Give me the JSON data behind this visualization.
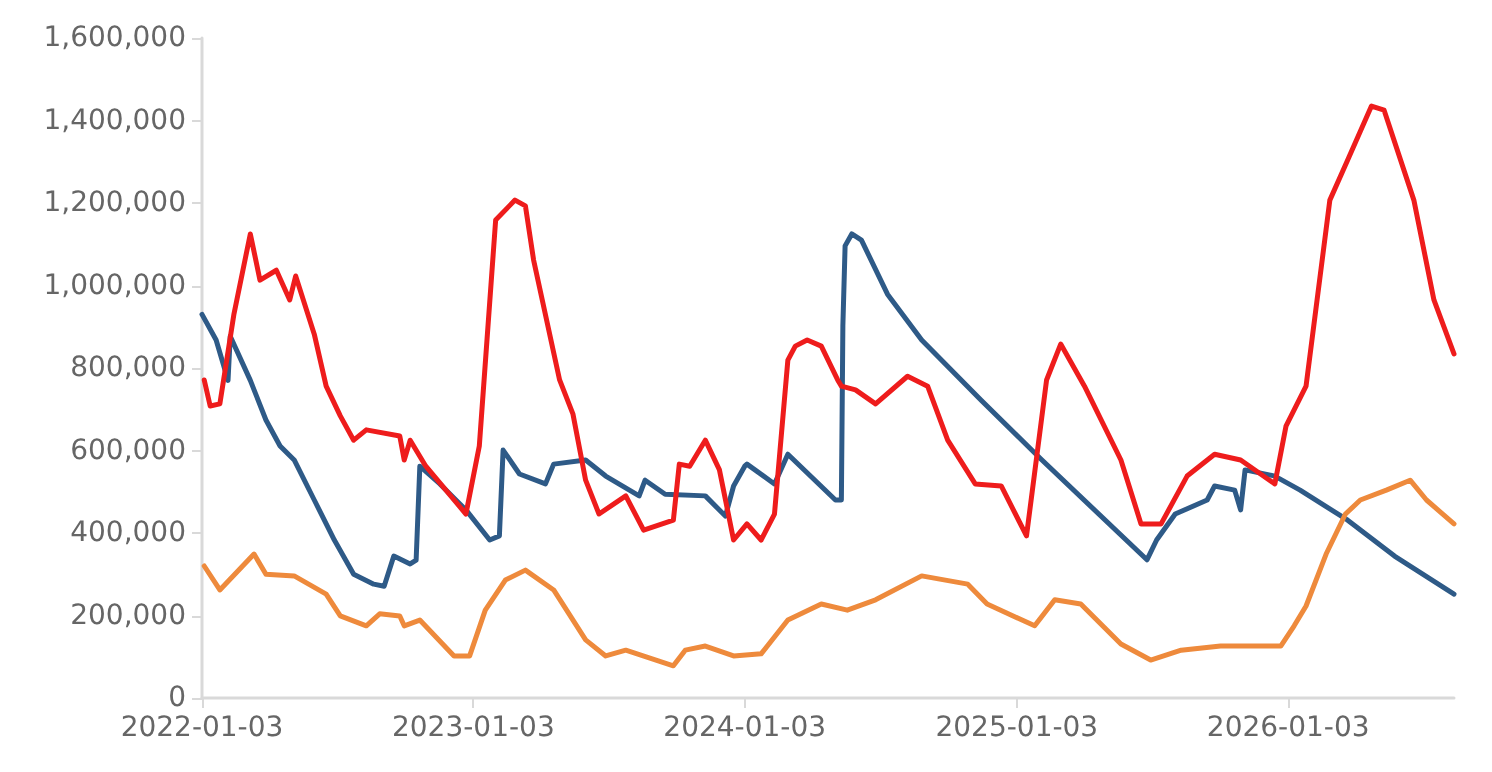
{
  "chart_data": {
    "type": "line",
    "xlim": [
      "2022-01-03",
      "2026-08-14"
    ],
    "xticks": [
      "2022-01-03",
      "2023-01-03",
      "2024-01-03",
      "2025-01-03",
      "2026-01-03"
    ],
    "ylim": [
      0,
      1600000
    ],
    "yticks": [
      0,
      {
        "value": 200000,
        "label": "200,000"
      },
      {
        "value": 400000,
        "label": "400,000"
      },
      {
        "value": 600000,
        "label": "600,000"
      },
      {
        "value": 800000,
        "label": "800,000"
      },
      {
        "value": 1000000,
        "label": "1,000,000"
      },
      {
        "value": 1200000,
        "label": "1,200,000"
      },
      {
        "value": 1400000,
        "label": "1,400,000"
      },
      {
        "value": 1600000,
        "label": "1,600,000"
      }
    ],
    "grid": false,
    "marker": "none",
    "line_style": "solid",
    "series": [
      {
        "color": "#2e5a87",
        "x": [
          "2022-01-03",
          "2022-01-22",
          "2022-02-07",
          "2022-02-10",
          "2022-03-09",
          "2022-03-30",
          "2022-04-18",
          "2022-05-07",
          "2022-06-03",
          "2022-06-30",
          "2022-07-26",
          "2022-08-22",
          "2022-09-05",
          "2022-09-18",
          "2022-10-10",
          "2022-10-18",
          "2022-10-23",
          "2022-11-19",
          "2022-12-24",
          "2023-01-25",
          "2023-02-07",
          "2023-02-12",
          "2023-03-06",
          "2023-04-10",
          "2023-04-21",
          "2023-06-03",
          "2023-06-30",
          "2023-08-14",
          "2023-08-22",
          "2023-09-18",
          "2023-11-11",
          "2023-12-08",
          "2023-12-19",
          "2024-01-03",
          "2024-01-06",
          "2024-02-12",
          "2024-03-01",
          "2024-05-04",
          "2024-05-12",
          "2024-05-14",
          "2024-05-17",
          "2024-05-26",
          "2024-06-08",
          "2024-07-13",
          "2024-08-28",
          "2024-11-16",
          "2025-02-04",
          "2025-06-27",
          "2025-07-10",
          "2025-08-04",
          "2025-09-16",
          "2025-09-26",
          "2025-10-23",
          "2025-10-31",
          "2025-11-06",
          "2025-12-16",
          "2026-01-19",
          "2026-03-24",
          "2026-05-26",
          "2026-08-14"
        ],
        "values": [
          930000,
          868000,
          770000,
          877000,
          770000,
          674000,
          611000,
          577000,
          480000,
          383000,
          300000,
          276000,
          271000,
          344000,
          325000,
          334000,
          562000,
          519000,
          456000,
          383000,
          393000,
          601000,
          543000,
          519000,
          567000,
          577000,
          538000,
          490000,
          528000,
          494000,
          490000,
          441000,
          514000,
          562000,
          567000,
          519000,
          591000,
          480000,
          480000,
          902000,
          1096000,
          1125000,
          1110000,
          979000,
          868000,
          722000,
          580000,
          335000,
          383000,
          446000,
          480000,
          514000,
          504000,
          456000,
          553000,
          538000,
          504000,
          431000,
          344000,
          252000
        ]
      },
      {
        "color": "#ee1c1c",
        "x": [
          "2022-01-06",
          "2022-01-14",
          "2022-01-27",
          "2022-02-15",
          "2022-03-09",
          "2022-03-22",
          "2022-04-13",
          "2022-05-01",
          "2022-05-09",
          "2022-06-03",
          "2022-06-19",
          "2022-07-08",
          "2022-07-26",
          "2022-08-12",
          "2022-09-26",
          "2022-10-02",
          "2022-10-10",
          "2022-10-31",
          "2022-12-24",
          "2023-01-11",
          "2023-02-02",
          "2023-02-28",
          "2023-03-14",
          "2023-03-25",
          "2023-04-29",
          "2023-05-17",
          "2023-06-03",
          "2023-06-21",
          "2023-07-27",
          "2023-08-20",
          "2023-09-29",
          "2023-10-07",
          "2023-10-21",
          "2023-11-11",
          "2023-11-30",
          "2023-12-19",
          "2024-01-06",
          "2024-01-25",
          "2024-02-12",
          "2024-03-01",
          "2024-03-11",
          "2024-03-27",
          "2024-04-15",
          "2024-05-07",
          "2024-05-12",
          "2024-05-31",
          "2024-06-27",
          "2024-08-09",
          "2024-09-05",
          "2024-10-02",
          "2024-11-08",
          "2024-12-13",
          "2025-01-16",
          "2025-02-12",
          "2025-03-03",
          "2025-04-04",
          "2025-05-23",
          "2025-06-19",
          "2025-07-16",
          "2025-08-20",
          "2025-09-26",
          "2025-10-31",
          "2025-12-16",
          "2025-12-31",
          "2026-01-27",
          "2026-02-28",
          "2026-03-24",
          "2026-04-25",
          "2026-05-12",
          "2026-06-21",
          "2026-07-18",
          "2026-08-14"
        ],
        "values": [
          771000,
          708000,
          713000,
          931000,
          1125000,
          1013000,
          1037000,
          965000,
          1023000,
          882000,
          756000,
          684000,
          625000,
          650000,
          635000,
          577000,
          625000,
          562000,
          446000,
          611000,
          1159000,
          1207000,
          1193000,
          1062000,
          771000,
          688000,
          528000,
          446000,
          490000,
          407000,
          431000,
          567000,
          562000,
          625000,
          553000,
          383000,
          422000,
          383000,
          446000,
          819000,
          853000,
          868000,
          853000,
          771000,
          756000,
          747000,
          713000,
          780000,
          756000,
          625000,
          519000,
          514000,
          393000,
          771000,
          858000,
          756000,
          577000,
          422000,
          422000,
          538000,
          591000,
          577000,
          519000,
          659000,
          756000,
          1207000,
          1304000,
          1435000,
          1425000,
          1207000,
          965000,
          834000
        ]
      },
      {
        "color": "#ee8a3c",
        "x": [
          "2022-01-06",
          "2022-01-27",
          "2022-03-14",
          "2022-03-30",
          "2022-05-07",
          "2022-06-19",
          "2022-07-08",
          "2022-08-12",
          "2022-08-30",
          "2022-09-26",
          "2022-10-02",
          "2022-10-23",
          "2022-12-08",
          "2022-12-29",
          "2023-01-19",
          "2023-02-15",
          "2023-03-14",
          "2023-04-21",
          "2023-06-03",
          "2023-06-30",
          "2023-07-27",
          "2023-09-29",
          "2023-10-15",
          "2023-11-11",
          "2023-12-19",
          "2024-01-25",
          "2024-03-01",
          "2024-04-15",
          "2024-05-20",
          "2024-06-27",
          "2024-08-28",
          "2024-10-29",
          "2024-11-24",
          "2025-01-27",
          "2025-02-23",
          "2025-03-30",
          "2025-05-23",
          "2025-07-02",
          "2025-08-12",
          "2025-10-04",
          "2025-12-24",
          "2026-01-11",
          "2026-01-27",
          "2026-02-23",
          "2026-03-21",
          "2026-04-10",
          "2026-05-15",
          "2026-06-16",
          "2026-07-08",
          "2026-08-14"
        ],
        "values": [
          320000,
          262000,
          349000,
          300000,
          296000,
          252000,
          199000,
          175000,
          204000,
          199000,
          175000,
          189000,
          102000,
          102000,
          213000,
          286000,
          310000,
          262000,
          141000,
          102000,
          116000,
          78000,
          116000,
          126000,
          102000,
          107000,
          189000,
          228000,
          213000,
          238000,
          296000,
          276000,
          228000,
          175000,
          238000,
          228000,
          131000,
          92000,
          116000,
          126000,
          126000,
          175000,
          223000,
          349000,
          446000,
          480000,
          504000,
          528000,
          480000,
          422000
        ]
      }
    ]
  }
}
